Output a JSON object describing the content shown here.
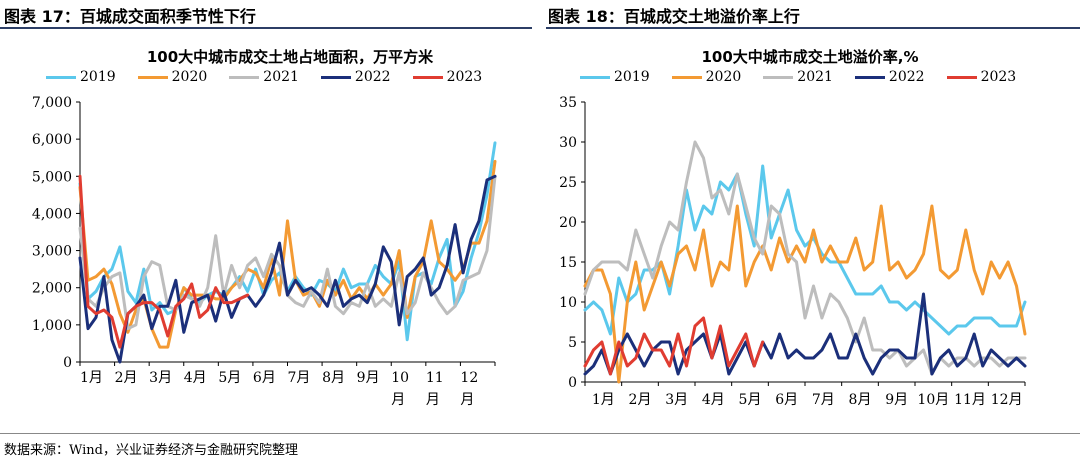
{
  "left": {
    "panel_title": "图表 17：百城成交面积季节性下行",
    "chart_data": {
      "type": "line",
      "title": "100大中城市成交土地占地面积，万平方米",
      "xlabel": "",
      "ylabel": "",
      "ylim": [
        0,
        7000
      ],
      "y_ticks": [
        "0",
        "1,000",
        "2,000",
        "3,000",
        "4,000",
        "5,000",
        "6,000",
        "7,000"
      ],
      "x_ticks": [
        "1月",
        "2月",
        "3月",
        "4月",
        "5月",
        "6月",
        "7月",
        "8月",
        "9月",
        "10\n月",
        "11\n月",
        "12\n月"
      ],
      "x_tick_lines": [
        [
          "1月"
        ],
        [
          "2月"
        ],
        [
          "3月"
        ],
        [
          "4月"
        ],
        [
          "5月"
        ],
        [
          "6月"
        ],
        [
          "7月"
        ],
        [
          "8月"
        ],
        [
          "9月"
        ],
        [
          "10",
          "月"
        ],
        [
          "11",
          "月"
        ],
        [
          "12",
          "月"
        ]
      ],
      "xlim": [
        1,
        53
      ],
      "legend_position": "top",
      "series": [
        {
          "name": "2019",
          "color": "#5bc8ec",
          "x": [
            1,
            2,
            3,
            4,
            5,
            6,
            7,
            8,
            9,
            10,
            11,
            12,
            13,
            14,
            15,
            16,
            17,
            18,
            19,
            20,
            21,
            22,
            23,
            24,
            25,
            26,
            27,
            28,
            29,
            30,
            31,
            32,
            33,
            34,
            35,
            36,
            37,
            38,
            39,
            40,
            41,
            42,
            43,
            44,
            45,
            46,
            47,
            48,
            49,
            50,
            51,
            52,
            53
          ],
          "values": [
            4800,
            1700,
            1900,
            2300,
            2500,
            3100,
            1900,
            1600,
            2500,
            1400,
            1600,
            1300,
            1400,
            2000,
            1700,
            1600,
            1800,
            1900,
            1800,
            2000,
            2300,
            1900,
            2500,
            1800,
            2200,
            2400,
            1900,
            2300,
            2000,
            1800,
            2200,
            2100,
            1900,
            2500,
            2000,
            2100,
            2100,
            2600,
            2300,
            2100,
            2700,
            600,
            2300,
            2400,
            2100,
            2800,
            3300,
            1500,
            1900,
            2800,
            3500,
            4500,
            5900
          ]
        },
        {
          "name": "2020",
          "color": "#f39a33",
          "x": [
            1,
            2,
            3,
            4,
            5,
            6,
            7,
            8,
            9,
            10,
            11,
            12,
            13,
            14,
            15,
            16,
            17,
            18,
            19,
            20,
            21,
            22,
            23,
            24,
            25,
            26,
            27,
            28,
            29,
            30,
            31,
            32,
            33,
            34,
            35,
            36,
            37,
            38,
            39,
            40,
            41,
            42,
            43,
            44,
            45,
            46,
            47,
            48,
            49,
            50,
            51,
            52,
            53
          ],
          "values": [
            4700,
            2200,
            2300,
            2500,
            2100,
            1300,
            800,
            1400,
            1700,
            900,
            400,
            400,
            1400,
            2000,
            1800,
            1800,
            1800,
            1700,
            1700,
            2000,
            2200,
            2500,
            2400,
            2000,
            2800,
            1800,
            3800,
            2200,
            1800,
            1900,
            1500,
            2200,
            1800,
            2200,
            1700,
            2000,
            1700,
            2100,
            1800,
            2100,
            3000,
            1200,
            2300,
            2700,
            3800,
            2700,
            2500,
            2200,
            2500,
            3200,
            3200,
            3800,
            5400
          ]
        },
        {
          "name": "2021",
          "color": "#bdbdbd",
          "x": [
            1,
            2,
            3,
            4,
            5,
            6,
            7,
            8,
            9,
            10,
            11,
            12,
            13,
            14,
            15,
            16,
            17,
            18,
            19,
            20,
            21,
            22,
            23,
            24,
            25,
            26,
            27,
            28,
            29,
            30,
            31,
            32,
            33,
            34,
            35,
            36,
            37,
            38,
            39,
            40,
            41,
            42,
            43,
            44,
            45,
            46,
            47,
            48,
            49,
            50,
            51,
            52,
            53
          ],
          "values": [
            3600,
            1700,
            1500,
            2000,
            2300,
            2400,
            900,
            1000,
            2300,
            2700,
            2600,
            1500,
            1400,
            1800,
            1700,
            1500,
            2000,
            3400,
            1800,
            2600,
            2000,
            2600,
            2800,
            2300,
            2900,
            2600,
            1800,
            1600,
            1500,
            1900,
            1600,
            2500,
            1500,
            1300,
            1600,
            1500,
            2100,
            1500,
            1700,
            1500,
            2400,
            1300,
            1600,
            2400,
            2000,
            1600,
            1300,
            1500,
            2200,
            2300,
            2400,
            3000,
            5000
          ]
        },
        {
          "name": "2022",
          "color": "#1b2f7a",
          "x": [
            1,
            2,
            3,
            4,
            5,
            6,
            7,
            8,
            9,
            10,
            11,
            12,
            13,
            14,
            15,
            16,
            17,
            18,
            19,
            20,
            21,
            22,
            23,
            24,
            25,
            26,
            27,
            28,
            29,
            30,
            31,
            32,
            33,
            34,
            35,
            36,
            37,
            38,
            39,
            40,
            41,
            42,
            43,
            44,
            45,
            46,
            47,
            48,
            49,
            50,
            51,
            52,
            53
          ],
          "values": [
            2800,
            900,
            1200,
            2300,
            600,
            0,
            1300,
            1500,
            1800,
            900,
            1500,
            1500,
            2200,
            800,
            1600,
            1700,
            1800,
            1100,
            1900,
            1200,
            1700,
            1800,
            1500,
            1800,
            2400,
            3200,
            1800,
            2200,
            1900,
            2000,
            1800,
            1500,
            2200,
            1500,
            1700,
            1800,
            1600,
            2100,
            3100,
            2700,
            1000,
            2300,
            2500,
            2800,
            1800,
            2000,
            2600,
            3700,
            2400,
            3300,
            3800,
            4900,
            5000
          ]
        },
        {
          "name": "2023",
          "color": "#e03c31",
          "x": [
            1,
            2,
            3,
            4,
            5,
            6,
            7,
            8,
            9,
            10,
            11,
            12,
            13,
            14,
            15,
            16,
            17,
            18,
            19,
            20,
            21,
            22
          ],
          "values": [
            5000,
            1500,
            1300,
            1400,
            1200,
            400,
            1300,
            1500,
            1600,
            1600,
            1400,
            700,
            1500,
            1700,
            2100,
            1200,
            1400,
            2000,
            1600,
            1600,
            1700,
            1800
          ]
        }
      ]
    }
  },
  "right": {
    "panel_title": "图表 18：百城成交土地溢价率上行",
    "chart_data": {
      "type": "line",
      "title": "100大中城市成交土地溢价率,%",
      "xlabel": "",
      "ylabel": "",
      "ylim": [
        0,
        35
      ],
      "y_ticks": [
        "0",
        "5",
        "10",
        "15",
        "20",
        "25",
        "30",
        "35"
      ],
      "x_ticks": [
        "1月",
        "2月",
        "3月",
        "4月",
        "5月",
        "6月",
        "7月",
        "8月",
        "9月",
        "10月",
        "11月",
        "12月"
      ],
      "xlim": [
        1,
        53
      ],
      "legend_position": "top",
      "series": [
        {
          "name": "2019",
          "color": "#5bc8ec",
          "x": [
            1,
            2,
            3,
            4,
            5,
            6,
            7,
            8,
            9,
            10,
            11,
            12,
            13,
            14,
            15,
            16,
            17,
            18,
            19,
            20,
            21,
            22,
            23,
            24,
            25,
            26,
            27,
            28,
            29,
            30,
            31,
            32,
            33,
            34,
            35,
            36,
            37,
            38,
            39,
            40,
            41,
            42,
            43,
            44,
            45,
            46,
            47,
            48,
            49,
            50,
            51,
            52,
            53
          ],
          "values": [
            9,
            10,
            9,
            6,
            13,
            10,
            11,
            14,
            14,
            15,
            11,
            17,
            24,
            19,
            22,
            21,
            25,
            24,
            26,
            21,
            17,
            27,
            18,
            21,
            24,
            19,
            17,
            18,
            16,
            15,
            15,
            13,
            11,
            11,
            11,
            12,
            10,
            10,
            9,
            10,
            9,
            8,
            7,
            6,
            7,
            7,
            8,
            8,
            8,
            7,
            7,
            7,
            10
          ]
        },
        {
          "name": "2020",
          "color": "#f39a33",
          "x": [
            1,
            2,
            3,
            4,
            5,
            6,
            7,
            8,
            9,
            10,
            11,
            12,
            13,
            14,
            15,
            16,
            17,
            18,
            19,
            20,
            21,
            22,
            23,
            24,
            25,
            26,
            27,
            28,
            29,
            30,
            31,
            32,
            33,
            34,
            35,
            36,
            37,
            38,
            39,
            40,
            41,
            42,
            43,
            44,
            45,
            46,
            47,
            48,
            49,
            50,
            51,
            52,
            53
          ],
          "values": [
            12,
            14,
            14,
            11,
            0,
            10,
            15,
            9,
            12,
            15,
            12,
            16,
            17,
            14,
            19,
            12,
            15,
            14,
            22,
            12,
            15,
            17,
            14,
            18,
            15,
            17,
            15,
            19,
            15,
            17,
            15,
            15,
            18,
            14,
            15,
            22,
            14,
            15,
            13,
            14,
            16,
            22,
            14,
            13,
            14,
            19,
            14,
            11,
            15,
            13,
            15,
            12,
            6
          ]
        },
        {
          "name": "2021",
          "color": "#bdbdbd",
          "x": [
            1,
            2,
            3,
            4,
            5,
            6,
            7,
            8,
            9,
            10,
            11,
            12,
            13,
            14,
            15,
            16,
            17,
            18,
            19,
            20,
            21,
            22,
            23,
            24,
            25,
            26,
            27,
            28,
            29,
            30,
            31,
            32,
            33,
            34,
            35,
            36,
            37,
            38,
            39,
            40,
            41,
            42,
            43,
            44,
            45,
            46,
            47,
            48,
            49,
            50,
            51,
            52,
            53
          ],
          "values": [
            11,
            14,
            15,
            15,
            15,
            14,
            19,
            16,
            13,
            17,
            20,
            19,
            25,
            30,
            28,
            23,
            24,
            21,
            26,
            22,
            18,
            16,
            22,
            21,
            16,
            15,
            8,
            12,
            8,
            11,
            10,
            8,
            5,
            8,
            4,
            4,
            3,
            4,
            2,
            3,
            4,
            1,
            3,
            2,
            3,
            3,
            2,
            3,
            3,
            2,
            3,
            3,
            3
          ]
        },
        {
          "name": "2022",
          "color": "#1b2f7a",
          "x": [
            1,
            2,
            3,
            4,
            5,
            6,
            7,
            8,
            9,
            10,
            11,
            12,
            13,
            14,
            15,
            16,
            17,
            18,
            19,
            20,
            21,
            22,
            23,
            24,
            25,
            26,
            27,
            28,
            29,
            30,
            31,
            32,
            33,
            34,
            35,
            36,
            37,
            38,
            39,
            40,
            41,
            42,
            43,
            44,
            45,
            46,
            47,
            48,
            49,
            50,
            51,
            52,
            53
          ],
          "values": [
            1,
            2,
            4,
            1,
            4,
            6,
            4,
            2,
            4,
            5,
            5,
            1,
            4,
            5,
            6,
            3,
            6,
            1,
            3,
            5,
            2,
            5,
            3,
            6,
            3,
            4,
            3,
            3,
            4,
            6,
            3,
            3,
            6,
            3,
            1,
            3,
            4,
            4,
            3,
            3,
            11,
            1,
            3,
            4,
            2,
            3,
            6,
            2,
            4,
            3,
            2,
            3,
            2
          ]
        },
        {
          "name": "2023",
          "color": "#e03c31",
          "x": [
            1,
            2,
            3,
            4,
            5,
            6,
            7,
            8,
            9,
            10,
            11,
            12,
            13,
            14,
            15,
            16,
            17,
            18,
            19,
            20,
            21,
            22
          ],
          "values": [
            2,
            4,
            5,
            1,
            5,
            2,
            3,
            6,
            4,
            4,
            2,
            6,
            2,
            7,
            8,
            3,
            7,
            2,
            4,
            6,
            2,
            5
          ]
        }
      ]
    }
  },
  "source": "数据来源：Wind，兴业证券经济与金融研究院整理"
}
